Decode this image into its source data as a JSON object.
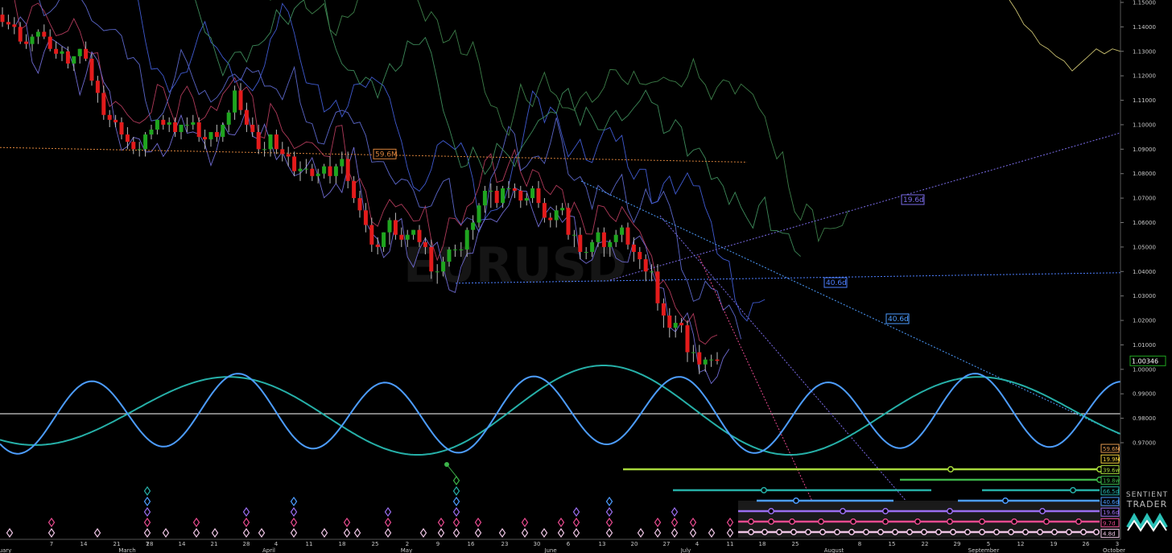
{
  "chart_data": {
    "type": "line",
    "title": "",
    "watermark": "EURUSD",
    "xlabel": "",
    "ylabel": "",
    "ylim": [
      0.965,
      1.15
    ],
    "y_ticks": [
      "1.15000",
      "1.14000",
      "1.13000",
      "1.12000",
      "1.11000",
      "1.10000",
      "1.09000",
      "1.08000",
      "1.07000",
      "1.06000",
      "1.05000",
      "1.04000",
      "1.03000",
      "1.02000",
      "1.01000",
      "1.00000",
      "0.99000",
      "0.98000",
      "0.97000"
    ],
    "x_ticks": [
      "ruary",
      "7",
      "14",
      "21",
      "28",
      "March",
      "7",
      "14",
      "21",
      "28",
      "April",
      "4",
      "11",
      "18",
      "25",
      "May",
      "2",
      "9",
      "16",
      "23",
      "30",
      "June",
      "6",
      "13",
      "20",
      "27",
      "July",
      "4",
      "11",
      "18",
      "25",
      "August",
      "8",
      "15",
      "22",
      "29",
      "September",
      "5",
      "12",
      "19",
      "26",
      "October",
      "3"
    ],
    "last_price": "1.00346",
    "colors": {
      "up": "#1fa51f",
      "down": "#e31b1b",
      "slow_wave": "#26b0a8",
      "fast_wave": "#4d9dff"
    },
    "candles": {
      "start_day": 0,
      "o": [
        1.145,
        1.142,
        1.141,
        1.14,
        1.134,
        1.133,
        1.136,
        1.138,
        1.136,
        1.131,
        1.129,
        1.13,
        1.125,
        1.128,
        1.131,
        1.127,
        1.118,
        1.113,
        1.104,
        1.102,
        1.101,
        1.096,
        1.093,
        1.09,
        1.09,
        1.096,
        1.098,
        1.102,
        1.1,
        1.101,
        1.097,
        1.1,
        1.1,
        1.101,
        1.095,
        1.094,
        1.097,
        1.095,
        1.1,
        1.105,
        1.114,
        1.106,
        1.1,
        1.097,
        1.09,
        1.09,
        1.096,
        1.09,
        1.088,
        1.087,
        1.081,
        1.082,
        1.082,
        1.079,
        1.08,
        1.083,
        1.079,
        1.083,
        1.086,
        1.077,
        1.07,
        1.065,
        1.059,
        1.051,
        1.05,
        1.056,
        1.061,
        1.055,
        1.053,
        1.055,
        1.057,
        1.052,
        1.05,
        1.04,
        1.04,
        1.044,
        1.049,
        1.049,
        1.049,
        1.057,
        1.06,
        1.067,
        1.073,
        1.073,
        1.068,
        1.074,
        1.074,
        1.073,
        1.069,
        1.07,
        1.074,
        1.068,
        1.062,
        1.061,
        1.065,
        1.066,
        1.055,
        1.055,
        1.048,
        1.048,
        1.052,
        1.056,
        1.05,
        1.052,
        1.055,
        1.058,
        1.051,
        1.048,
        1.045,
        1.04,
        1.04,
        1.027,
        1.022,
        1.017,
        1.019,
        1.018,
        1.007,
        1.007,
        1.002,
        1.004,
        1.004
      ],
      "h": [
        1.148,
        1.145,
        1.144,
        1.142,
        1.137,
        1.137,
        1.139,
        1.141,
        1.139,
        1.134,
        1.132,
        1.132,
        1.128,
        1.131,
        1.134,
        1.129,
        1.12,
        1.116,
        1.106,
        1.104,
        1.103,
        1.099,
        1.095,
        1.093,
        1.097,
        1.1,
        1.102,
        1.104,
        1.103,
        1.103,
        1.1,
        1.103,
        1.104,
        1.103,
        1.098,
        1.096,
        1.1,
        1.101,
        1.106,
        1.116,
        1.117,
        1.109,
        1.103,
        1.1,
        1.093,
        1.096,
        1.098,
        1.093,
        1.091,
        1.089,
        1.085,
        1.086,
        1.084,
        1.082,
        1.084,
        1.087,
        1.084,
        1.089,
        1.089,
        1.079,
        1.073,
        1.068,
        1.062,
        1.054,
        1.056,
        1.062,
        1.064,
        1.058,
        1.057,
        1.057,
        1.059,
        1.054,
        1.053,
        1.043,
        1.046,
        1.05,
        1.051,
        1.052,
        1.058,
        1.063,
        1.068,
        1.075,
        1.076,
        1.075,
        1.075,
        1.077,
        1.076,
        1.075,
        1.072,
        1.075,
        1.077,
        1.07,
        1.064,
        1.067,
        1.068,
        1.068,
        1.057,
        1.058,
        1.05,
        1.053,
        1.058,
        1.058,
        1.053,
        1.057,
        1.059,
        1.06,
        1.054,
        1.05,
        1.047,
        1.043,
        1.043,
        1.029,
        1.025,
        1.022,
        1.021,
        1.02,
        1.01,
        1.01,
        1.005,
        1.006,
        1.007
      ],
      "l": [
        1.14,
        1.139,
        1.137,
        1.133,
        1.131,
        1.13,
        1.133,
        1.135,
        1.13,
        1.127,
        1.126,
        1.123,
        1.122,
        1.125,
        1.126,
        1.116,
        1.109,
        1.102,
        1.099,
        1.099,
        1.094,
        1.09,
        1.088,
        1.087,
        1.087,
        1.094,
        1.096,
        1.098,
        1.097,
        1.095,
        1.094,
        1.097,
        1.098,
        1.093,
        1.09,
        1.091,
        1.093,
        1.093,
        1.097,
        1.102,
        1.104,
        1.097,
        1.095,
        1.088,
        1.087,
        1.087,
        1.088,
        1.085,
        1.083,
        1.079,
        1.077,
        1.08,
        1.077,
        1.076,
        1.078,
        1.076,
        1.076,
        1.08,
        1.074,
        1.068,
        1.062,
        1.056,
        1.048,
        1.047,
        1.048,
        1.051,
        1.053,
        1.05,
        1.05,
        1.053,
        1.05,
        1.047,
        1.037,
        1.035,
        1.038,
        1.042,
        1.046,
        1.046,
        1.046,
        1.053,
        1.058,
        1.064,
        1.066,
        1.066,
        1.066,
        1.07,
        1.07,
        1.066,
        1.067,
        1.068,
        1.066,
        1.06,
        1.058,
        1.058,
        1.063,
        1.053,
        1.05,
        1.045,
        1.045,
        1.046,
        1.05,
        1.046,
        1.046,
        1.05,
        1.052,
        1.049,
        1.044,
        1.041,
        1.036,
        1.036,
        1.024,
        1.017,
        1.013,
        1.013,
        1.015,
        1.003,
        1.003,
        0.998,
        0.999,
        1.001,
        1.002
      ],
      "c": [
        1.142,
        1.141,
        1.14,
        1.134,
        1.133,
        1.136,
        1.138,
        1.136,
        1.131,
        1.129,
        1.13,
        1.125,
        1.128,
        1.131,
        1.127,
        1.118,
        1.113,
        1.104,
        1.102,
        1.101,
        1.096,
        1.093,
        1.09,
        1.09,
        1.096,
        1.098,
        1.102,
        1.1,
        1.101,
        1.097,
        1.1,
        1.1,
        1.101,
        1.095,
        1.094,
        1.097,
        1.095,
        1.1,
        1.105,
        1.114,
        1.106,
        1.1,
        1.097,
        1.09,
        1.09,
        1.096,
        1.09,
        1.088,
        1.087,
        1.081,
        1.082,
        1.082,
        1.079,
        1.08,
        1.083,
        1.079,
        1.083,
        1.086,
        1.077,
        1.07,
        1.065,
        1.059,
        1.051,
        1.05,
        1.056,
        1.061,
        1.055,
        1.053,
        1.055,
        1.057,
        1.052,
        1.05,
        1.04,
        1.04,
        1.044,
        1.049,
        1.049,
        1.049,
        1.057,
        1.06,
        1.067,
        1.073,
        1.073,
        1.068,
        1.074,
        1.074,
        1.073,
        1.069,
        1.07,
        1.074,
        1.068,
        1.062,
        1.061,
        1.065,
        1.066,
        1.055,
        1.055,
        1.048,
        1.048,
        1.052,
        1.056,
        1.05,
        1.052,
        1.055,
        1.058,
        1.051,
        1.048,
        1.045,
        1.04,
        1.04,
        1.027,
        1.022,
        1.017,
        1.019,
        1.018,
        1.007,
        1.007,
        1.002,
        1.004,
        1.004,
        1.00346
      ]
    },
    "horizontal_levels": [
      {
        "label": "59.6M",
        "value": 1.0847,
        "color": "#d9823b"
      },
      {
        "label": "40.6d",
        "value": 1.0395,
        "color": "#4d7fff"
      }
    ],
    "trend_labels": [
      {
        "label": "19.6d",
        "color": "#7a6ce8"
      },
      {
        "label": "40.6d",
        "color": "#4d9dff"
      },
      {
        "label": "40.6d",
        "color": "#4d9dff"
      },
      {
        "label": "19.6d",
        "color": "#7a6ce8"
      }
    ],
    "cycle_legend": [
      {
        "label": "59.6M",
        "color": "#e39a4f"
      },
      {
        "label": "19.9M",
        "color": "#f2d23c"
      },
      {
        "label": "39.6w",
        "color": "#a6d83b"
      },
      {
        "label": "19.8w",
        "color": "#3db44a"
      },
      {
        "label": "66.5d",
        "color": "#26b0a8"
      },
      {
        "label": "40.6d",
        "color": "#4d9dff"
      },
      {
        "label": "19.6d",
        "color": "#9a6ef0"
      },
      {
        "label": "9.7d",
        "color": "#e84a8f"
      },
      {
        "label": "4.8d",
        "color": "#f0c6e6"
      }
    ]
  },
  "brand": {
    "line1": "SENTIENT",
    "line2": "TRADER"
  }
}
